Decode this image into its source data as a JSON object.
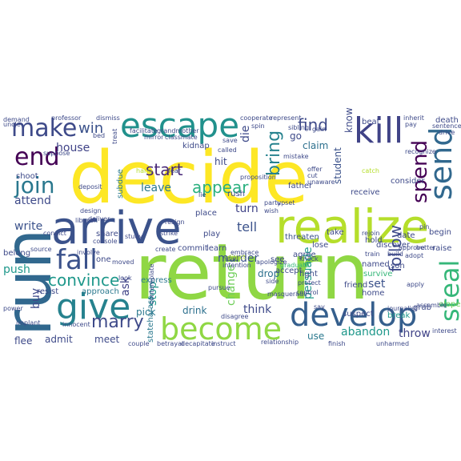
{
  "words": [
    {
      "text": "return",
      "color": "#8fd744"
    },
    {
      "text": "decide",
      "color": "#fde725"
    },
    {
      "text": "run",
      "color": "#31688e"
    },
    {
      "text": "arrive",
      "color": "#3b528b"
    },
    {
      "text": "realize",
      "color": "#b5de2b"
    },
    {
      "text": "escape",
      "color": "#21918c"
    },
    {
      "text": "make",
      "color": "#3e4a89"
    },
    {
      "text": "kill",
      "color": "#404387"
    },
    {
      "text": "give",
      "color": "#26828e"
    },
    {
      "text": "fall",
      "color": "#3b528b"
    },
    {
      "text": "develop",
      "color": "#355f8d"
    },
    {
      "text": "become",
      "color": "#8fd744"
    },
    {
      "text": "end",
      "color": "#440154"
    },
    {
      "text": "join",
      "color": "#2a788e"
    },
    {
      "text": "send",
      "color": "#31688e"
    },
    {
      "text": "spend",
      "color": "#440154"
    },
    {
      "text": "steal",
      "color": "#35b779"
    },
    {
      "text": "convince",
      "color": "#1f988b"
    },
    {
      "text": "marry",
      "color": "#3e4a89"
    },
    {
      "text": "start",
      "color": "#482878"
    },
    {
      "text": "appear",
      "color": "#2ab07f"
    },
    {
      "text": "bring",
      "color": "#26828e"
    },
    {
      "text": "find",
      "color": "#3e4a89"
    },
    {
      "text": "follow",
      "color": "#3e4a89"
    },
    {
      "text": "win",
      "color": "#3b528b"
    },
    {
      "text": "house",
      "color": "#404387"
    },
    {
      "text": "attend",
      "color": "#3e4a89"
    },
    {
      "text": "write",
      "color": "#3b528b"
    },
    {
      "text": "tell",
      "color": "#3b528b"
    },
    {
      "text": "murder",
      "color": "#3b528b"
    },
    {
      "text": "leave",
      "color": "#2a788e"
    },
    {
      "text": "persuade",
      "color": "#1f988b"
    },
    {
      "text": "abandon",
      "color": "#1f988b"
    },
    {
      "text": "throw",
      "color": "#404387"
    },
    {
      "text": "push",
      "color": "#1f988b"
    },
    {
      "text": "buy",
      "color": "#3e4a89"
    },
    {
      "text": "ask",
      "color": "#404387"
    },
    {
      "text": "stop",
      "color": "#1f988b"
    },
    {
      "text": "change",
      "color": "#6ece58"
    },
    {
      "text": "think",
      "color": "#3e4a89"
    },
    {
      "text": "drink",
      "color": "#2d708e"
    },
    {
      "text": "set",
      "color": "#3b528b"
    },
    {
      "text": "drop",
      "color": "#2d708e"
    },
    {
      "text": "turn",
      "color": "#404387"
    },
    {
      "text": "claim",
      "color": "#2d708e"
    },
    {
      "text": "die",
      "color": "#3e4a89"
    },
    {
      "text": "hit",
      "color": "#3e4a89"
    },
    {
      "text": "go",
      "color": "#3e4a89"
    },
    {
      "text": "student",
      "color": "#3b528b"
    },
    {
      "text": "know",
      "color": "#3e4a89"
    },
    {
      "text": "admit",
      "color": "#3e4a89"
    },
    {
      "text": "meet",
      "color": "#3e4a89"
    },
    {
      "text": "flee",
      "color": "#3e4a89"
    },
    {
      "text": "approach",
      "color": "#2a788e"
    },
    {
      "text": "share",
      "color": "#3e4a89"
    },
    {
      "text": "pick",
      "color": "#2a788e"
    },
    {
      "text": "use",
      "color": "#2a788e"
    },
    {
      "text": "see",
      "color": "#3e4a89"
    },
    {
      "text": "accept",
      "color": "#3e4a89"
    },
    {
      "text": "threaten",
      "color": "#3b528b"
    },
    {
      "text": "take",
      "color": "#3e4a89"
    },
    {
      "text": "fight",
      "color": "#3e4a89"
    },
    {
      "text": "hold",
      "color": "#3e4a89"
    },
    {
      "text": "receive",
      "color": "#3e4a89"
    },
    {
      "text": "date",
      "color": "#3e4a89"
    },
    {
      "text": "raise",
      "color": "#3e4a89"
    },
    {
      "text": "discover",
      "color": "#3e4a89"
    },
    {
      "text": "friend",
      "color": "#3e4a89"
    },
    {
      "text": "son",
      "color": "#3e4a89"
    },
    {
      "text": "survive",
      "color": "#35b779"
    },
    {
      "text": "named",
      "color": "#3e4a89"
    },
    {
      "text": "beat",
      "color": "#3e4a89"
    },
    {
      "text": "death",
      "color": "#3e4a89"
    },
    {
      "text": "play",
      "color": "#3e4a89"
    },
    {
      "text": "rush",
      "color": "#3e4a89"
    },
    {
      "text": "place",
      "color": "#3e4a89"
    },
    {
      "text": "learn",
      "color": "#3e4a89"
    },
    {
      "text": "commit",
      "color": "#3e4a89"
    },
    {
      "text": "kidnap",
      "color": "#3e4a89"
    },
    {
      "text": "belong",
      "color": "#3e4a89"
    },
    {
      "text": "resist",
      "color": "#3e4a89"
    },
    {
      "text": "one",
      "color": "#3e4a89"
    },
    {
      "text": "shoot",
      "color": "#3e4a89"
    },
    {
      "text": "father",
      "color": "#3e4a89"
    },
    {
      "text": "lose",
      "color": "#3e4a89"
    },
    {
      "text": "suspect",
      "color": "#3e4a89"
    },
    {
      "text": "break",
      "color": "#1f988b"
    },
    {
      "text": "home",
      "color": "#3e4a89"
    },
    {
      "text": "grab",
      "color": "#3e4a89"
    },
    {
      "text": "begin",
      "color": "#3e4a89"
    },
    {
      "text": "stateharass",
      "color": "#2a788e"
    },
    {
      "text": "consider",
      "color": "#3e4a89"
    },
    {
      "text": "elope",
      "color": "#6ece58"
    },
    {
      "text": "agree",
      "color": "#3e4a89"
    },
    {
      "text": "upset",
      "color": "#3e4a89"
    },
    {
      "text": "express",
      "color": "#2a788e"
    },
    {
      "text": "subdue",
      "color": "#2a788e"
    },
    {
      "text": "proposition",
      "color": "#3e4a89"
    },
    {
      "text": "design",
      "color": "#3e4a89"
    },
    {
      "text": "deposit",
      "color": "#3e4a89"
    },
    {
      "text": "deliver",
      "color": "#3e4a89"
    },
    {
      "text": "source",
      "color": "#3e4a89"
    },
    {
      "text": "console",
      "color": "#3e4a89"
    },
    {
      "text": "graduate",
      "color": "#35b779"
    },
    {
      "text": "professor",
      "color": "#3e4a89"
    },
    {
      "text": "demand",
      "color": "#3e4a89"
    },
    {
      "text": "uncle",
      "color": "#3e4a89"
    },
    {
      "text": "treat",
      "color": "#3e4a89"
    },
    {
      "text": "inherit",
      "color": "#3e4a89"
    },
    {
      "text": "drive",
      "color": "#3e4a89"
    },
    {
      "text": "journalist",
      "color": "#3e4a89"
    },
    {
      "text": "relationship",
      "color": "#3e4a89"
    },
    {
      "text": "finish",
      "color": "#3e4a89"
    },
    {
      "text": "couple",
      "color": "#3e4a89"
    },
    {
      "text": "betrayal",
      "color": "#3e4a89"
    },
    {
      "text": "decapitate",
      "color": "#3e4a89"
    },
    {
      "text": "instruct",
      "color": "#3e4a89"
    },
    {
      "text": "implant",
      "color": "#3e4a89"
    },
    {
      "text": "innocent",
      "color": "#3e4a89"
    },
    {
      "text": "disagree",
      "color": "#3e4a89"
    },
    {
      "text": "masquerade",
      "color": "#3e4a89"
    },
    {
      "text": "unharmed",
      "color": "#3e4a89"
    },
    {
      "text": "interest",
      "color": "#3e4a89"
    },
    {
      "text": "adopt",
      "color": "#3e4a89"
    },
    {
      "text": "apply",
      "color": "#3e4a89"
    },
    {
      "text": "approve",
      "color": "#3e4a89"
    },
    {
      "text": "build",
      "color": "#3e4a89"
    },
    {
      "text": "train",
      "color": "#3e4a89"
    },
    {
      "text": "knock",
      "color": "#3e4a89"
    },
    {
      "text": "rejoin",
      "color": "#3e4a89"
    },
    {
      "text": "protect",
      "color": "#3e4a89"
    },
    {
      "text": "say",
      "color": "#3e4a89"
    },
    {
      "text": "control",
      "color": "#3e4a89"
    },
    {
      "text": "pursue",
      "color": "#3e4a89"
    },
    {
      "text": "contemplate",
      "color": "#3e4a89"
    },
    {
      "text": "moved",
      "color": "#3e4a89"
    },
    {
      "text": "look",
      "color": "#3e4a89"
    },
    {
      "text": "involve",
      "color": "#3e4a89"
    },
    {
      "text": "convict",
      "color": "#3e4a89"
    },
    {
      "text": "liberal",
      "color": "#3e4a89"
    },
    {
      "text": "suppose",
      "color": "#3e4a89"
    },
    {
      "text": "bed",
      "color": "#3e4a89"
    },
    {
      "text": "dismiss",
      "color": "#3e4a89"
    },
    {
      "text": "grandmother",
      "color": "#3e4a89"
    },
    {
      "text": "facilitate",
      "color": "#3e4a89"
    },
    {
      "text": "classmate",
      "color": "#3e4a89"
    },
    {
      "text": "hang",
      "color": "#b5de2b"
    },
    {
      "text": "fear",
      "color": "#3e4a89"
    },
    {
      "text": "resign",
      "color": "#3e4a89"
    },
    {
      "text": "lie",
      "color": "#3e4a89"
    },
    {
      "text": "strike",
      "color": "#3e4a89"
    },
    {
      "text": "study",
      "color": "#3e4a89"
    },
    {
      "text": "create",
      "color": "#3e4a89"
    },
    {
      "text": "intention",
      "color": "#3e4a89"
    },
    {
      "text": "head",
      "color": "#3e4a89"
    },
    {
      "text": "embrace",
      "color": "#3e4a89"
    },
    {
      "text": "direct",
      "color": "#b5de2b"
    },
    {
      "text": "side",
      "color": "#3e4a89"
    },
    {
      "text": "apologize",
      "color": "#3e4a89"
    },
    {
      "text": "cooperate",
      "color": "#3e4a89"
    },
    {
      "text": "represent",
      "color": "#3e4a89"
    },
    {
      "text": "spin",
      "color": "#3e4a89"
    },
    {
      "text": "sibling",
      "color": "#3e4a89"
    },
    {
      "text": "mistake",
      "color": "#3e4a89"
    },
    {
      "text": "gain",
      "color": "#3e4a89"
    },
    {
      "text": "offer",
      "color": "#3e4a89"
    },
    {
      "text": "cut",
      "color": "#3e4a89"
    },
    {
      "text": "unaware",
      "color": "#3e4a89"
    },
    {
      "text": "catch",
      "color": "#b5de2b"
    },
    {
      "text": "called",
      "color": "#3e4a89"
    },
    {
      "text": "save",
      "color": "#3e4a89"
    },
    {
      "text": "party",
      "color": "#3e4a89"
    },
    {
      "text": "wish",
      "color": "#3e4a89"
    },
    {
      "text": "sentence",
      "color": "#3e4a89"
    },
    {
      "text": "pay",
      "color": "#3e4a89"
    },
    {
      "text": "recognize",
      "color": "#3e4a89"
    },
    {
      "text": "mirror",
      "color": "#3e4a89"
    },
    {
      "text": "pin",
      "color": "#3e4a89"
    },
    {
      "text": "better",
      "color": "#3e4a89"
    },
    {
      "text": "power",
      "color": "#3e4a89"
    },
    {
      "text": "assemble",
      "color": "#3e4a89"
    }
  ]
}
